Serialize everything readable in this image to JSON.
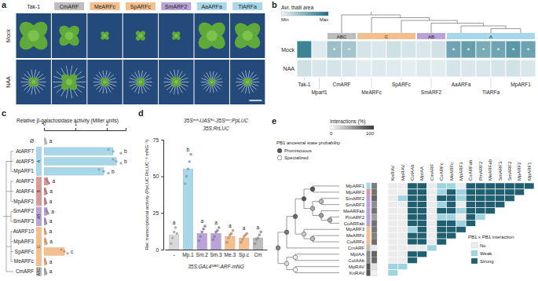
{
  "chart_data": [
    {
      "panel": "a",
      "type": "image_grid",
      "columns": [
        "Tak-1",
        "CmARF",
        "MeARFc",
        "SpARFc",
        "SmARF2",
        "AaARFa",
        "TlARFa"
      ],
      "column_colors": [
        null,
        "#bdbdbd",
        "#f4bf8f",
        "#f4bf8f",
        "#b9a3d9",
        "#a9d7ea",
        "#a9d7ea"
      ],
      "rows": [
        "Mock",
        "NAA"
      ]
    },
    {
      "panel": "b",
      "type": "heatmap",
      "legend_title": "Avr. thalli area",
      "colorbar_labels": [
        "Min",
        "Max"
      ],
      "colorbar_range": [
        0,
        1
      ],
      "rows": [
        "Mock",
        "NAA"
      ],
      "groups": [
        {
          "label": "Tak-1",
          "span": 1
        },
        {
          "label": "Mparf1",
          "span": 1
        },
        {
          "label": "CmARF",
          "span": 2
        },
        {
          "label": "MeARFc",
          "span": 2
        },
        {
          "label": "SpARFc",
          "span": 2
        },
        {
          "label": "SmARF2",
          "span": 2
        },
        {
          "label": "AaARFa",
          "span": 2
        },
        {
          "label": "TlARFa",
          "span": 2
        },
        {
          "label": "MpARF1",
          "span": 2
        }
      ],
      "classes": [
        {
          "label": "ABC",
          "groups": [
            2
          ],
          "color": "#bdbdbd"
        },
        {
          "label": "C",
          "groups": [
            3,
            4
          ],
          "color": "#f4bf8f"
        },
        {
          "label": "AB",
          "groups": [
            5
          ],
          "color": "#b9a3d9"
        },
        {
          "label": "A",
          "groups": [
            6,
            7,
            8
          ],
          "color": "#a9d7ea"
        }
      ],
      "values": [
        [
          0.85,
          0.08,
          0.4,
          0.35,
          0.12,
          0.1,
          0.15,
          0.12,
          0.1,
          0.14,
          0.6,
          0.65,
          0.55,
          0.6,
          0.7,
          0.62
        ],
        [
          0.15,
          0.1,
          0.12,
          0.1,
          0.06,
          0.08,
          0.07,
          0.05,
          0.08,
          0.06,
          0.12,
          0.1,
          0.1,
          0.12,
          0.14,
          0.1
        ]
      ],
      "annotations": [
        [
          null,
          null,
          "*",
          "*",
          null,
          null,
          null,
          null,
          null,
          null,
          "*",
          "*",
          "*",
          "*",
          "*",
          "*"
        ],
        [
          null,
          null,
          null,
          null,
          null,
          null,
          null,
          null,
          null,
          null,
          null,
          null,
          null,
          null,
          null,
          null
        ]
      ]
    },
    {
      "panel": "c",
      "type": "bar",
      "orientation": "horizontal",
      "xlabel": "Relative β-galactosidase activity (Miller units)",
      "categories": [
        "Ø",
        "AtARF7",
        "AtARF5",
        "MpARF1",
        "AtARF2",
        "AtARF4",
        "MpARF2",
        "SmARF2",
        "SmARF3",
        "AtARF10",
        "MpARF3",
        "SpARFc",
        "MeARFc",
        "CmARF"
      ],
      "values": [
        0.05,
        2.2,
        2.3,
        1.9,
        0.12,
        0.06,
        0.05,
        0.1,
        0.05,
        0.04,
        0.06,
        0.65,
        0.05,
        0.05
      ],
      "points": [
        [
          0.03,
          0.05,
          0.07
        ],
        [
          2.05,
          2.2,
          2.45
        ],
        [
          2.2,
          2.3,
          2.45
        ],
        [
          1.75,
          1.9,
          2.05
        ],
        [
          0.08,
          0.12,
          0.16
        ],
        [
          0.04,
          0.06,
          0.08
        ],
        [
          0.03,
          0.05,
          0.07
        ],
        [
          0.07,
          0.1,
          0.13
        ],
        [
          0.03,
          0.05,
          0.07
        ],
        [
          0.02,
          0.04,
          0.06
        ],
        [
          0.04,
          0.06,
          0.08
        ],
        [
          0.55,
          0.65,
          0.75
        ],
        [
          0.03,
          0.05,
          0.07
        ],
        [
          0.03,
          0.05,
          0.07
        ]
      ],
      "letters": [
        "a",
        "b",
        "b",
        "b",
        "a",
        "a",
        "a",
        "a",
        "a",
        "a",
        "a",
        "c",
        "a",
        "a"
      ],
      "colors": [
        "#d9d9d9",
        "#a9d7ea",
        "#a9d7ea",
        "#a9d7ea",
        "#d99a9a",
        "#d99a9a",
        "#d99a9a",
        "#b9a3d9",
        "#b9a3d9",
        "#f4bf8f",
        "#f4bf8f",
        "#f4bf8f",
        "#f4bf8f",
        "#bdbdbd"
      ],
      "classes": [
        {
          "label": "A",
          "rows": [
            1,
            2,
            3
          ],
          "color": "#a9d7ea"
        },
        {
          "label": "B",
          "rows": [
            4,
            5,
            6
          ],
          "color": "#d99a9a"
        },
        {
          "label": "AB",
          "rows": [
            7,
            8
          ],
          "color": "#b9a3d9"
        },
        {
          "label": "C",
          "rows": [
            9,
            10,
            11,
            12
          ],
          "color": "#f4bf8f"
        },
        {
          "label": "ABC",
          "rows": [
            13
          ],
          "color": "#bdbdbd"
        }
      ],
      "xlim": [
        0,
        2.6
      ],
      "xticks": [
        0,
        1,
        2
      ]
    },
    {
      "panel": "d",
      "type": "bar",
      "title": "35Sᵉⁿʰ-UAS⁶ˣ-35Sᵐⁱⁿ:PpLUC",
      "subtitle": "35S:RrLUC",
      "xlabel": "35S:GAL4ᴰᴮᴰ-ARF-mNG",
      "ylabel": "Rel. transcriptional activity (PpLUC RrLUC⁻¹ mNG⁻¹)",
      "categories": [
        "-",
        "Mp.1",
        "Sm.2",
        "Sm.3",
        "Me.3",
        "Sp.c",
        "Cm"
      ],
      "values": [
        10,
        55,
        11,
        11,
        9,
        8,
        8
      ],
      "points": [
        [
          4,
          8,
          12,
          15,
          11
        ],
        [
          45,
          50,
          55,
          60,
          65
        ],
        [
          6,
          9,
          12,
          14,
          16
        ],
        [
          7,
          9,
          12,
          13,
          15
        ],
        [
          5,
          8,
          10,
          11,
          13
        ],
        [
          5,
          7,
          9,
          10,
          11
        ],
        [
          4,
          7,
          8,
          10,
          12
        ]
      ],
      "letters": [
        "a",
        "b",
        "a",
        "a",
        "a",
        "a",
        "a"
      ],
      "colors": [
        "#d9d9d9",
        "#a9d7ea",
        "#b9a3d9",
        "#b9a3d9",
        "#f4bf8f",
        "#f4bf8f",
        "#bdbdbd"
      ],
      "ylim": [
        0,
        75
      ],
      "yticks": [
        0,
        25,
        50,
        75
      ]
    },
    {
      "panel": "e",
      "type": "heatmap",
      "labels": [
        "MpARF1",
        "MpARF2",
        "SmARF2",
        "SmARF3",
        "MeARFab",
        "PmARF2",
        "CoARFab",
        "MpARF3",
        "MeARFc",
        "CoARFc",
        "CmARF",
        "MpIAA",
        "CoIAAb",
        "MpRAV",
        "KnRAV"
      ],
      "row_colors": [
        "#a9d7ea",
        "#d99a9a",
        "#b9a3d9",
        "#b9a3d9",
        "#b9a3d9",
        "#b9a3d9",
        "#b9a3d9",
        "#f4bf8f",
        "#f4bf8f",
        "#f4bf8f",
        "#bdbdbd",
        "#8c8c8c",
        "#8c8c8c",
        "#555555",
        "#555555"
      ],
      "interactions_percent": [
        67,
        71,
        77,
        58,
        71,
        47,
        71,
        69,
        64,
        73,
        10,
        78,
        76,
        14,
        7
      ],
      "interactions_legend": {
        "title": "Interactions (%)",
        "range": [
          0,
          100
        ],
        "ticks": [
          0,
          100
        ]
      },
      "matrix": [
        [
          0,
          0,
          2,
          2,
          0,
          1,
          1,
          0,
          2,
          2,
          2,
          2,
          2,
          2,
          2
        ],
        [
          0,
          0,
          2,
          2,
          0,
          1,
          2,
          1,
          2,
          2,
          2,
          2,
          2,
          2
        ],
        [
          0,
          1,
          2,
          2,
          0,
          2,
          2,
          1,
          2,
          2,
          2,
          2,
          2
        ],
        [
          0,
          0,
          2,
          2,
          0,
          1,
          2,
          0,
          2,
          2,
          2,
          2
        ],
        [
          0,
          0,
          2,
          2,
          0,
          2,
          2,
          1,
          2,
          2,
          2
        ],
        [
          0,
          0,
          2,
          2,
          0,
          1,
          1,
          0,
          2,
          1
        ],
        [
          0,
          0,
          2,
          2,
          0,
          2,
          2,
          1,
          2
        ],
        [
          0,
          0,
          1,
          2,
          0,
          2,
          2,
          2
        ],
        [
          0,
          0,
          2,
          2,
          0,
          2,
          2
        ],
        [
          0,
          0,
          2,
          2,
          0,
          2
        ],
        [
          0,
          0,
          0,
          0,
          1
        ],
        [
          0,
          0,
          2,
          2
        ],
        [
          0,
          0,
          2
        ],
        [
          1,
          1
        ],
        [
          1
        ]
      ],
      "categories_legend": {
        "title": "PB1 x PB1 interaction",
        "labels": [
          "No",
          "Weak",
          "Strong"
        ],
        "colors": [
          "#ececec",
          "#9fd3e0",
          "#1f5f70"
        ]
      },
      "tree_legend": {
        "title": "PB1 ancestral state probability",
        "labels": [
          "Promiscuous",
          "Specialized"
        ],
        "values": [
          1,
          0
        ]
      },
      "tree": {
        "p": 0.7,
        "c": [
          {
            "p": 0.8,
            "c": [
              {
                "p": 0.9,
                "c": [
                  {
                    "p": 1,
                    "c": [
                      {
                        "p": 1,
                        "c": [
                          0,
                          1
                        ]
                      },
                      {
                        "p": 0.5,
                        "c": [
                          {
                            "p": 0.4,
                            "c": [
                              2,
                              3
                            ]
                          },
                          {
                            "p": 0.6,
                            "c": [
                              4,
                              {
                                "p": 0.5,
                                "c": [
                                  5,
                                  6
                                ]
                              }
                            ]
                          }
                        ]
                      }
                    ]
                  },
                  {
                    "p": 0.3,
                    "c": [
                      7,
                      {
                        "p": 0.4,
                        "c": [
                          8,
                          9
                        ]
                      }
                    ]
                  }
                ]
              },
              10
            ]
          },
          {
            "p": 0.2,
            "c": [
              {
                "p": 0.1,
                "c": [
                  11,
                  12
                ]
              },
              {
                "p": 0,
                "c": [
                  13,
                  14
                ]
              }
            ]
          }
        ]
      }
    }
  ]
}
